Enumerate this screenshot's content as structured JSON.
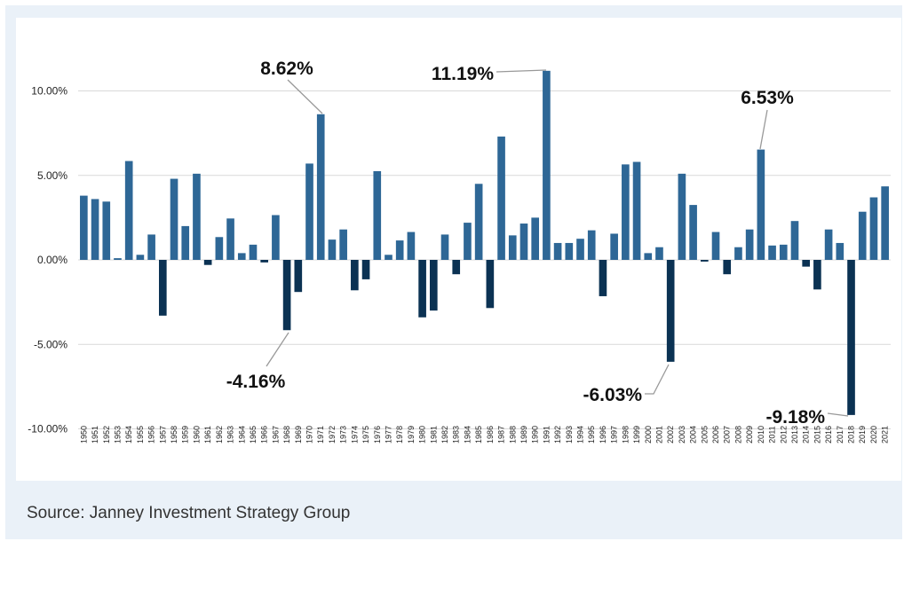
{
  "source": "Source: Janney Investment Strategy Group",
  "colors": {
    "positive": "#2e6796",
    "negative": "#0b3253",
    "grid": "#d9d9d9",
    "leader": "#999999",
    "background": "#eaf1f8"
  },
  "chart_data": {
    "type": "bar",
    "title": "",
    "xlabel": "",
    "ylabel": "",
    "ylim": [
      -10,
      10
    ],
    "ytick_values": [
      -10,
      -5,
      0,
      5,
      10
    ],
    "ytick_labels": [
      "-10.00%",
      "-5.00%",
      "0.00%",
      "5.00%",
      "10.00%"
    ],
    "grid": true,
    "categories": [
      "1950",
      "1951",
      "1952",
      "1953",
      "1954",
      "1955",
      "1956",
      "1957",
      "1958",
      "1959",
      "1960",
      "1961",
      "1962",
      "1963",
      "1964",
      "1965",
      "1966",
      "1967",
      "1968",
      "1969",
      "1970",
      "1971",
      "1972",
      "1973",
      "1974",
      "1975",
      "1976",
      "1977",
      "1978",
      "1979",
      "1980",
      "1981",
      "1982",
      "1983",
      "1984",
      "1985",
      "1986",
      "1987",
      "1988",
      "1989",
      "1990",
      "1991",
      "1992",
      "1993",
      "1994",
      "1995",
      "1996",
      "1997",
      "1998",
      "1999",
      "2000",
      "2001",
      "2002",
      "2003",
      "2004",
      "2005",
      "2006",
      "2007",
      "2008",
      "2009",
      "2010",
      "2011",
      "2012",
      "2013",
      "2014",
      "2015",
      "2016",
      "2017",
      "2018",
      "2019",
      "2020",
      "2021"
    ],
    "values": [
      3.8,
      3.6,
      3.45,
      0.1,
      5.85,
      0.3,
      1.5,
      -3.3,
      4.8,
      2.0,
      5.1,
      -0.3,
      1.35,
      2.45,
      0.4,
      0.9,
      -0.15,
      2.65,
      -4.16,
      -1.9,
      5.7,
      8.62,
      1.2,
      1.8,
      -1.8,
      -1.15,
      5.25,
      0.3,
      1.15,
      1.65,
      -3.4,
      -3.0,
      1.5,
      -0.85,
      2.2,
      4.5,
      -2.85,
      7.3,
      1.45,
      2.15,
      2.5,
      11.19,
      1.0,
      1.0,
      1.25,
      1.75,
      -2.15,
      1.55,
      5.65,
      5.8,
      0.4,
      0.75,
      -6.03,
      5.1,
      3.25,
      -0.1,
      1.65,
      -0.85,
      0.75,
      1.8,
      6.53,
      0.85,
      0.9,
      2.3,
      -0.4,
      -1.75,
      1.8,
      1.0,
      -9.18,
      2.85,
      3.7,
      4.35
    ],
    "annotations": [
      {
        "category": "1968",
        "value": -4.16,
        "text": "-4.16%"
      },
      {
        "category": "1971",
        "value": 8.62,
        "text": "8.62%"
      },
      {
        "category": "1991",
        "value": 11.19,
        "text": "11.19%"
      },
      {
        "category": "2002",
        "value": -6.03,
        "text": "-6.03%"
      },
      {
        "category": "2010",
        "value": 6.53,
        "text": "6.53%"
      },
      {
        "category": "2018",
        "value": -9.18,
        "text": "-9.18%"
      }
    ]
  }
}
